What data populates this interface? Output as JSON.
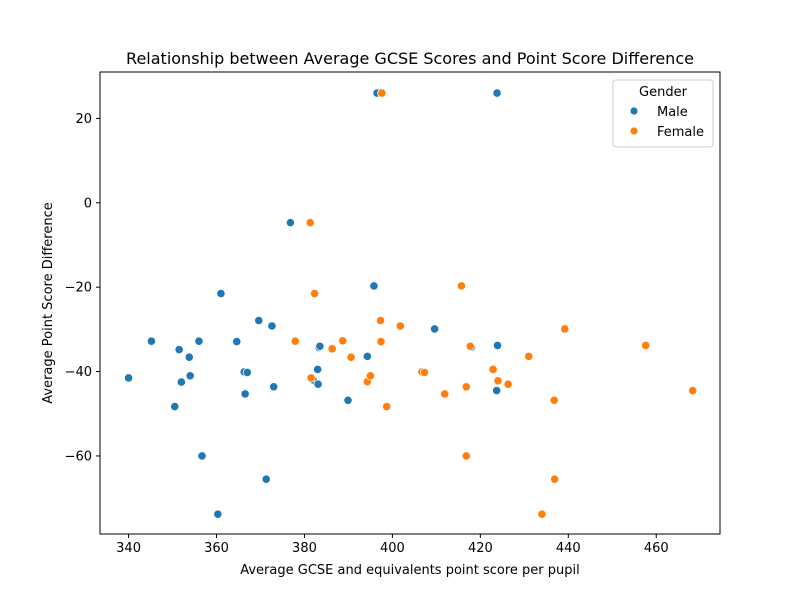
{
  "chart_data": {
    "type": "scatter",
    "title": "Relationship between Average GCSE Scores and Point Score Difference",
    "xlabel": "Average GCSE and equivalents point score per pupil",
    "ylabel": "Average Point Score Difference",
    "xlim": [
      333.5,
      474.5
    ],
    "ylim": [
      -78.5,
      31
    ],
    "xticks": [
      340,
      360,
      380,
      400,
      420,
      440,
      460
    ],
    "yticks": [
      -60,
      -40,
      -20,
      0,
      20
    ],
    "grid": false,
    "legend": {
      "title": "Gender",
      "placement": "top-right"
    },
    "series": [
      {
        "name": "Male",
        "color": "#1f77b4",
        "points": [
          [
            340.0,
            -41.5
          ],
          [
            345.2,
            -32.8
          ],
          [
            350.5,
            -48.3
          ],
          [
            351.5,
            -34.8
          ],
          [
            352.0,
            -42.5
          ],
          [
            353.8,
            -36.6
          ],
          [
            354.0,
            -41.0
          ],
          [
            356.0,
            -32.8
          ],
          [
            356.7,
            -60.0
          ],
          [
            360.3,
            -73.8
          ],
          [
            361.0,
            -21.5
          ],
          [
            364.6,
            -32.9
          ],
          [
            366.3,
            -40.1
          ],
          [
            366.5,
            -45.3
          ],
          [
            367.0,
            -40.2
          ],
          [
            369.6,
            -27.9
          ],
          [
            371.3,
            -65.5
          ],
          [
            372.6,
            -29.2
          ],
          [
            373.0,
            -43.6
          ],
          [
            376.8,
            -4.7
          ],
          [
            382.0,
            -42.0
          ],
          [
            383.0,
            -39.5
          ],
          [
            383.1,
            -43.0
          ],
          [
            383.3,
            -34.3
          ],
          [
            383.5,
            -34.0
          ],
          [
            389.9,
            -46.8
          ],
          [
            394.3,
            -36.4
          ],
          [
            395.8,
            -19.7
          ],
          [
            396.5,
            26.0
          ],
          [
            409.6,
            -29.9
          ],
          [
            418.0,
            -34.2
          ],
          [
            423.7,
            -44.5
          ],
          [
            423.8,
            26.0
          ],
          [
            423.9,
            -33.8
          ]
        ]
      },
      {
        "name": "Female",
        "color": "#ff7f0e",
        "points": [
          [
            377.9,
            -32.8
          ],
          [
            381.3,
            -4.7
          ],
          [
            381.5,
            -41.5
          ],
          [
            382.3,
            -21.5
          ],
          [
            386.3,
            -34.6
          ],
          [
            388.7,
            -32.7
          ],
          [
            390.6,
            -36.6
          ],
          [
            394.3,
            -42.4
          ],
          [
            395.0,
            -41.0
          ],
          [
            397.3,
            -27.9
          ],
          [
            397.4,
            -32.9
          ],
          [
            397.6,
            26.0
          ],
          [
            398.7,
            -48.3
          ],
          [
            401.8,
            -29.2
          ],
          [
            406.7,
            -40.1
          ],
          [
            407.3,
            -40.2
          ],
          [
            411.9,
            -45.3
          ],
          [
            415.7,
            -19.7
          ],
          [
            416.8,
            -43.6
          ],
          [
            416.8,
            -60.0
          ],
          [
            417.7,
            -34.0
          ],
          [
            422.9,
            -39.5
          ],
          [
            424.0,
            -42.2
          ],
          [
            426.3,
            -43.0
          ],
          [
            431.0,
            -36.4
          ],
          [
            434.0,
            -73.8
          ],
          [
            436.8,
            -46.8
          ],
          [
            436.9,
            -65.5
          ],
          [
            439.2,
            -29.9
          ],
          [
            457.6,
            -33.8
          ],
          [
            468.3,
            -44.5
          ]
        ]
      }
    ]
  }
}
